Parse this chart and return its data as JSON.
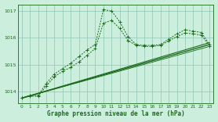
{
  "background_color": "#cceedd",
  "grid_color": "#99ccbb",
  "line_color": "#1a6b1a",
  "title": "Graphe pression niveau de la mer (hPa)",
  "xlim": [
    -0.5,
    23.5
  ],
  "ylim": [
    1013.55,
    1017.25
  ],
  "yticks": [
    1014,
    1015,
    1016,
    1017
  ],
  "xticks": [
    0,
    1,
    2,
    3,
    4,
    5,
    6,
    7,
    8,
    9,
    10,
    11,
    12,
    13,
    14,
    15,
    16,
    17,
    18,
    19,
    20,
    21,
    22,
    23
  ],
  "line1_x": [
    0,
    1,
    2,
    3,
    4,
    5,
    6,
    7,
    8,
    9,
    10,
    11,
    12,
    13,
    14,
    15,
    16,
    17,
    18,
    19,
    20,
    21,
    22,
    23
  ],
  "line1_y": [
    1013.75,
    1013.85,
    1013.85,
    1014.3,
    1014.65,
    1014.85,
    1015.05,
    1015.3,
    1015.55,
    1015.75,
    1017.05,
    1017.0,
    1016.6,
    1016.05,
    1015.75,
    1015.72,
    1015.72,
    1015.75,
    1015.95,
    1016.15,
    1016.3,
    1016.25,
    1016.2,
    1015.75
  ],
  "line2_x": [
    0,
    1,
    2,
    3,
    4,
    5,
    6,
    7,
    8,
    9,
    10,
    11,
    12,
    13,
    14,
    15,
    16,
    17,
    18,
    19,
    20,
    21,
    22,
    23
  ],
  "line2_y": [
    1013.75,
    1013.82,
    1013.82,
    1014.2,
    1014.55,
    1014.75,
    1014.9,
    1015.1,
    1015.35,
    1015.6,
    1016.55,
    1016.65,
    1016.35,
    1015.9,
    1015.72,
    1015.68,
    1015.68,
    1015.72,
    1015.88,
    1016.05,
    1016.18,
    1016.15,
    1016.1,
    1015.7
  ],
  "line3_x": [
    0,
    23
  ],
  "line3_y": [
    1013.75,
    1015.75
  ],
  "line4_x": [
    0,
    23
  ],
  "line4_y": [
    1013.75,
    1015.82
  ],
  "line5_x": [
    0,
    23
  ],
  "line5_y": [
    1013.75,
    1015.68
  ]
}
